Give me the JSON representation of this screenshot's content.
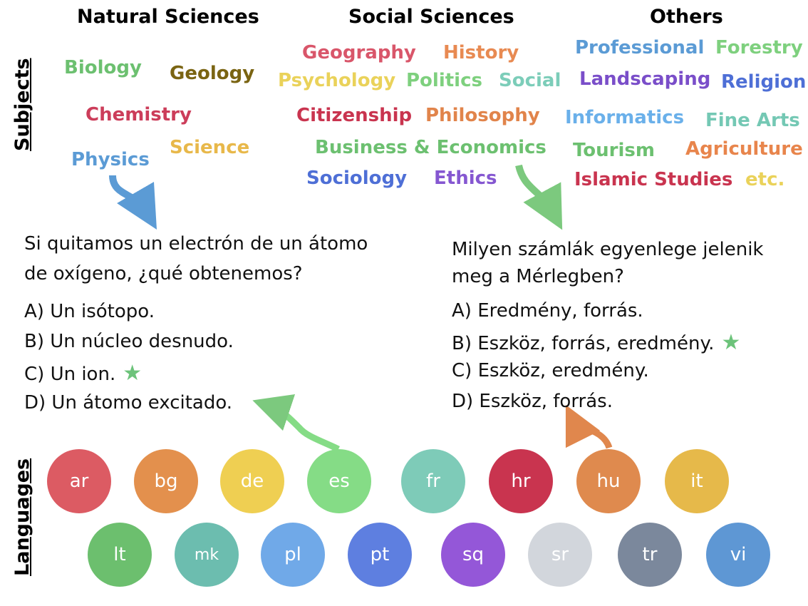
{
  "headings": {
    "natural": "Natural Sciences",
    "social": "Social Sciences",
    "others": "Others",
    "subjects": "Subjects",
    "languages": "Languages"
  },
  "subjects": {
    "natural": [
      {
        "label": "Biology",
        "color": "#6cc070"
      },
      {
        "label": "Geology",
        "color": "#7a6412"
      },
      {
        "label": "Chemistry",
        "color": "#cc3d5a"
      },
      {
        "label": "Physics",
        "color": "#5b9bd5"
      },
      {
        "label": "Science",
        "color": "#e8b84a"
      }
    ],
    "social": [
      {
        "label": "Geography",
        "color": "#d9566a"
      },
      {
        "label": "History",
        "color": "#e88a52"
      },
      {
        "label": "Psychology",
        "color": "#ead25a"
      },
      {
        "label": "Politics",
        "color": "#7ed07e"
      },
      {
        "label": "Social",
        "color": "#7ccdb9"
      },
      {
        "label": "Citizenship",
        "color": "#c9344f"
      },
      {
        "label": "Philosophy",
        "color": "#e1844b"
      },
      {
        "label": "Business & Economics",
        "color": "#6cc070"
      },
      {
        "label": "Sociology",
        "color": "#4e6fd6"
      },
      {
        "label": "Ethics",
        "color": "#8557d1"
      }
    ],
    "others": [
      {
        "label": "Professional",
        "color": "#5b9bd5"
      },
      {
        "label": "Forestry",
        "color": "#7ed07e"
      },
      {
        "label": "Landscaping",
        "color": "#7a4ec9"
      },
      {
        "label": "Religion",
        "color": "#4e6fd6"
      },
      {
        "label": "Informatics",
        "color": "#6ab0ea"
      },
      {
        "label": "Fine Arts",
        "color": "#74c8b4"
      },
      {
        "label": "Tourism",
        "color": "#6cc070"
      },
      {
        "label": "Agriculture",
        "color": "#e8854c"
      },
      {
        "label": "Islamic Studies",
        "color": "#c9344f"
      },
      {
        "label": "etc.",
        "color": "#ead25a"
      }
    ]
  },
  "question_es": {
    "line1": "Si quitamos un electrón de un átomo",
    "line2": "de oxígeno, ¿qué obtenemos?",
    "options": [
      "A) Un isótopo.",
      "B) Un núcleo desnudo.",
      "C) Un ion.",
      "D) Un átomo excitado."
    ],
    "correct_mark": "★"
  },
  "question_hu": {
    "line1": "Milyen számlák egyenlege jelenik",
    "line2": "meg a Mérlegben?",
    "options": [
      "A) Eredmény, forrás.",
      "B) Eszköz, forrás, eredmény.",
      "C) Eszköz, eredmény.",
      "D) Eszköz, forrás."
    ],
    "correct_mark": "★"
  },
  "languages": [
    {
      "code": "ar",
      "color": "#dc5b63"
    },
    {
      "code": "bg",
      "color": "#e3904d"
    },
    {
      "code": "de",
      "color": "#efcf52"
    },
    {
      "code": "es",
      "color": "#85dc86"
    },
    {
      "code": "fr",
      "color": "#7ecbb8"
    },
    {
      "code": "hr",
      "color": "#c9344f"
    },
    {
      "code": "hu",
      "color": "#df8a4e"
    },
    {
      "code": "it",
      "color": "#e6b94a"
    },
    {
      "code": "lt",
      "color": "#6cbf6e"
    },
    {
      "code": "mk",
      "color": "#6cbdaf"
    },
    {
      "code": "pl",
      "color": "#70a9e8"
    },
    {
      "code": "pt",
      "color": "#5e7fe0"
    },
    {
      "code": "sq",
      "color": "#9457d8"
    },
    {
      "code": "sr",
      "color": "#d2d6dc"
    },
    {
      "code": "tr",
      "color": "#7b889c"
    },
    {
      "code": "vi",
      "color": "#5e97d4"
    }
  ]
}
